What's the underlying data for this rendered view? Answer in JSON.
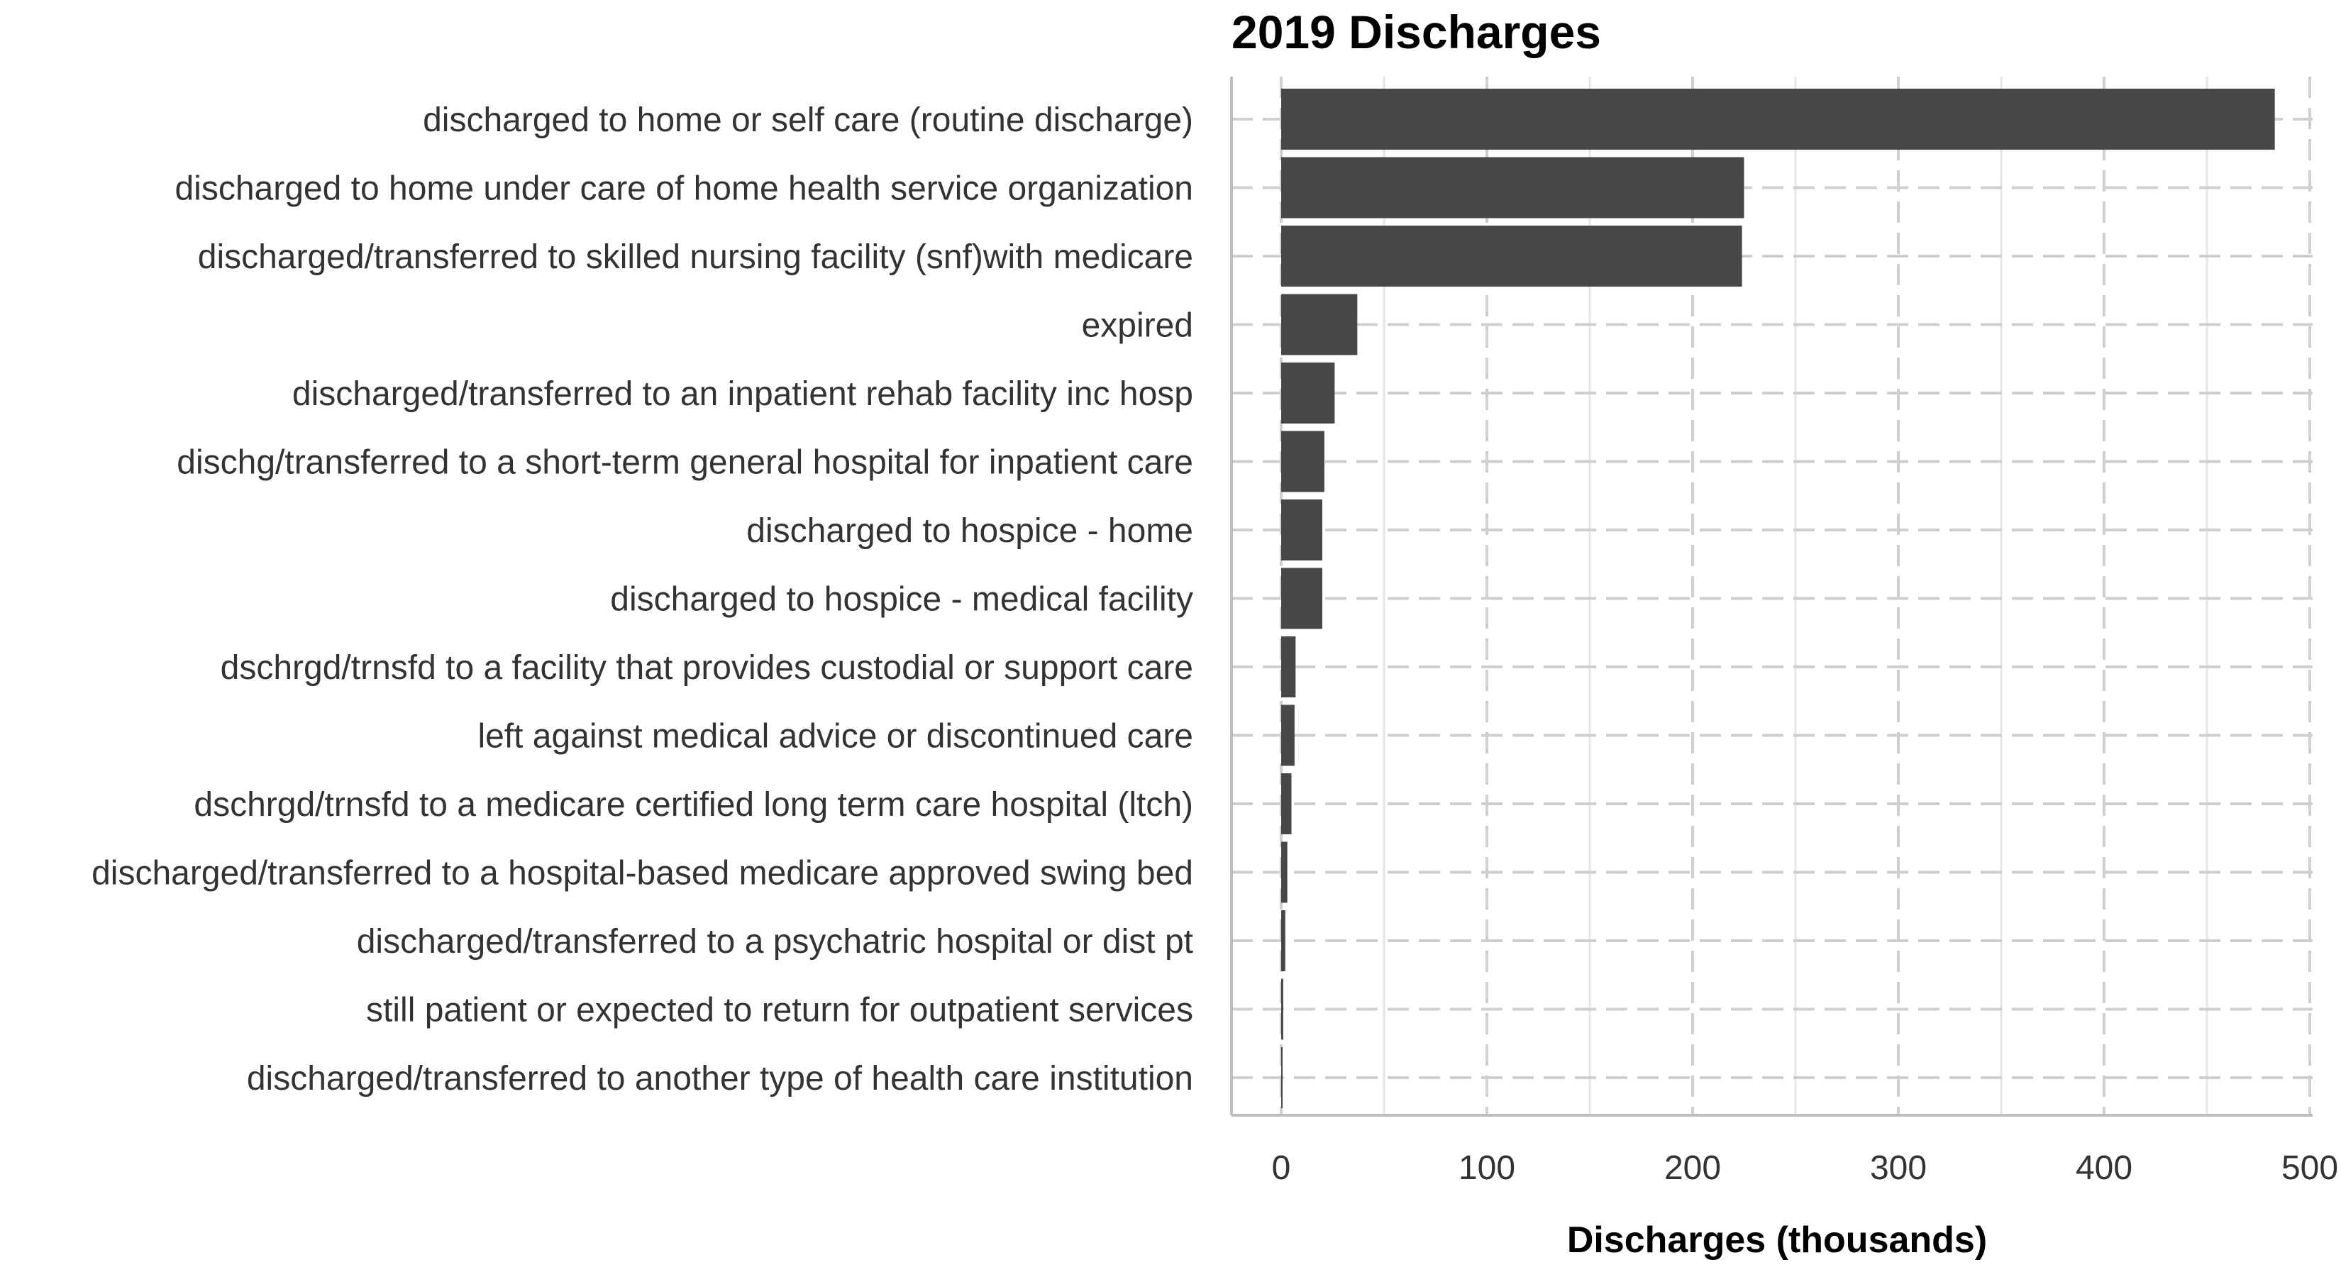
{
  "chart_data": {
    "type": "bar",
    "orientation": "horizontal",
    "title": "2019 Discharges",
    "xlabel": "Discharges (thousands)",
    "ylabel": "",
    "xlim": [
      0,
      500
    ],
    "xticks": [
      0,
      100,
      200,
      300,
      400,
      500
    ],
    "grid": true,
    "categories": [
      "discharged to home or self care (routine discharge)",
      "discharged to home under care of home health service organization",
      "discharged/transferred to skilled nursing facility (snf)with medicare",
      "expired",
      "discharged/transferred to an inpatient rehab facility inc hosp",
      "dischg/transferred to a short-term general hospital for inpatient care",
      "discharged to hospice - home",
      "discharged to hospice - medical facility",
      "dschrgd/trnsfd to a facility that provides custodial or support care",
      "left against medical advice or discontinued care",
      "dschrgd/trnsfd to a medicare certified long term care hospital (ltch)",
      "discharged/transferred to a hospital-based medicare approved swing bed",
      "discharged/transferred to a psychatric hospital or dist pt",
      "still patient or expected to return for outpatient services",
      "discharged/transferred to another type of health care institution"
    ],
    "values": [
      483,
      225,
      224,
      37,
      26,
      21,
      20,
      20,
      7,
      6.5,
      5,
      3,
      2,
      1,
      0.6
    ],
    "bar_color": "#474747"
  }
}
